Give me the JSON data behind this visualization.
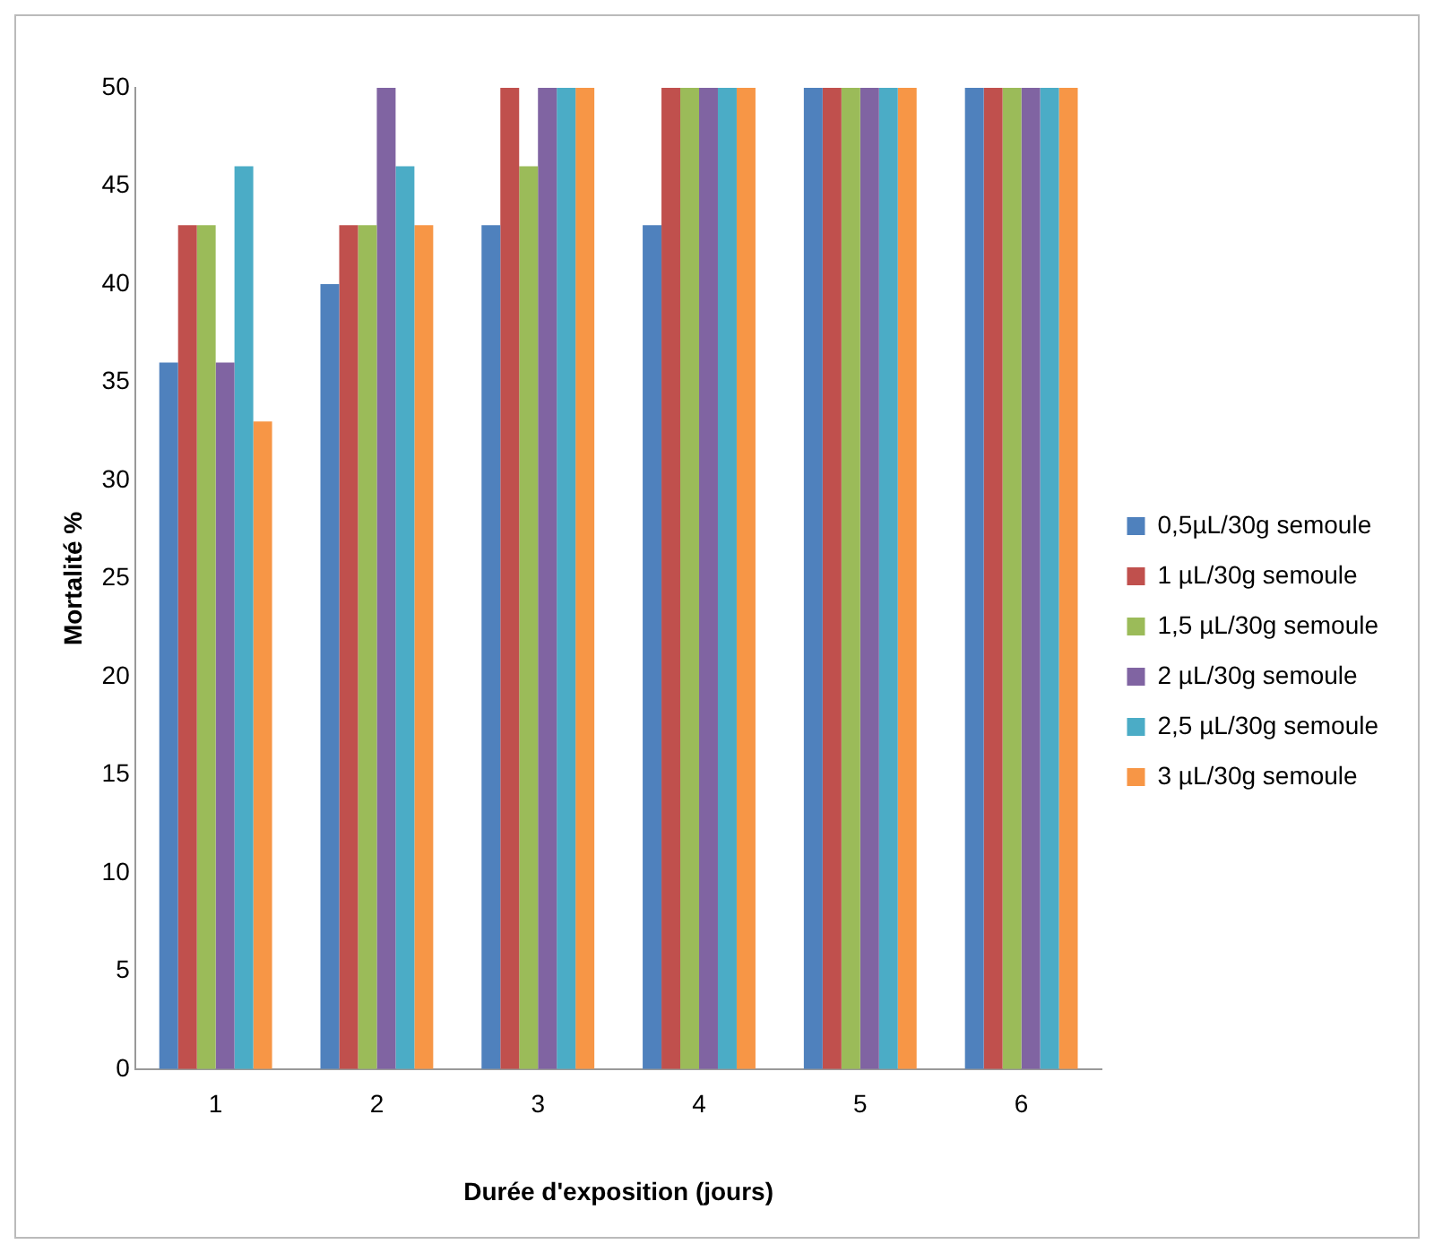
{
  "chart_data": {
    "type": "bar",
    "xlabel": "Durée d'exposition (jours)",
    "ylabel": "Mortalité %",
    "categories": [
      "1",
      "2",
      "3",
      "4",
      "5",
      "6"
    ],
    "series": [
      {
        "name": "0,5µL/30g semoule",
        "color": "#4f81bd",
        "values": [
          36,
          40,
          43,
          43,
          50,
          50
        ]
      },
      {
        "name": "1 µL/30g semoule",
        "color": "#c0504d",
        "values": [
          43,
          43,
          50,
          50,
          50,
          50
        ]
      },
      {
        "name": "1,5 µL/30g semoule",
        "color": "#9bbb59",
        "values": [
          43,
          43,
          46,
          50,
          50,
          50
        ]
      },
      {
        "name": "2 µL/30g semoule",
        "color": "#8064a2",
        "values": [
          36,
          50,
          50,
          50,
          50,
          50
        ]
      },
      {
        "name": "2,5 µL/30g semoule",
        "color": "#4bacc6",
        "values": [
          46,
          46,
          50,
          50,
          50,
          50
        ]
      },
      {
        "name": "3 µL/30g semoule",
        "color": "#f79646",
        "values": [
          33,
          43,
          50,
          50,
          50,
          50
        ]
      }
    ],
    "ylim": [
      0,
      50
    ],
    "yticks": [
      0,
      5,
      10,
      15,
      20,
      25,
      30,
      35,
      40,
      45,
      50
    ],
    "grid": false,
    "legend": "right"
  }
}
